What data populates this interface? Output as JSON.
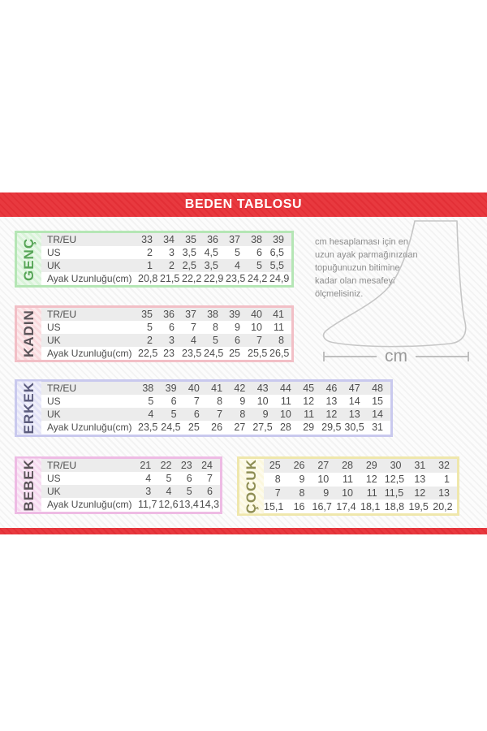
{
  "banner": {
    "title": "BEDEN TABLOSU",
    "accent_color": "#e8393f"
  },
  "note": {
    "lines": [
      "cm hesaplaması için en",
      "uzun ayak parmağınızdan",
      "topuğunuzun bitimine",
      "kadar olan mesafeyi",
      "ölçmelisiniz."
    ]
  },
  "foot_diagram": {
    "measure_label": "cm",
    "outline_color": "#c6c6c6"
  },
  "tables": [
    {
      "label": "GENÇ",
      "colors": {
        "border": "#b5e6b5",
        "label_bg": "#d8f3d8",
        "label_fg": "#57a557"
      },
      "has_row_labels": true,
      "rows": [
        {
          "label": "TR/EU",
          "values": [
            "33",
            "34",
            "35",
            "36",
            "37",
            "38",
            "39"
          ]
        },
        {
          "label": "US",
          "values": [
            "2",
            "3",
            "3,5",
            "4,5",
            "5",
            "6",
            "6,5"
          ]
        },
        {
          "label": "UK",
          "values": [
            "1",
            "2",
            "2,5",
            "3,5",
            "4",
            "5",
            "5,5"
          ]
        },
        {
          "label": "Ayak Uzunluğu(cm)",
          "values": [
            "20,8",
            "21,5",
            "22,2",
            "22,9",
            "23,5",
            "24,2",
            "24,9"
          ]
        }
      ]
    },
    {
      "label": "KADIN",
      "colors": {
        "border": "#f2bfc6",
        "label_bg": "#f9d9dd",
        "label_fg": "#5a5358"
      },
      "has_row_labels": true,
      "rows": [
        {
          "label": "TR/EU",
          "values": [
            "35",
            "36",
            "37",
            "38",
            "39",
            "40",
            "41"
          ]
        },
        {
          "label": "US",
          "values": [
            "5",
            "6",
            "7",
            "8",
            "9",
            "10",
            "11"
          ]
        },
        {
          "label": "UK",
          "values": [
            "2",
            "3",
            "4",
            "5",
            "6",
            "7",
            "8"
          ]
        },
        {
          "label": "Ayak Uzunluğu(cm)",
          "values": [
            "22,5",
            "23",
            "23,5",
            "24,5",
            "25",
            "25,5",
            "26,5"
          ]
        }
      ]
    },
    {
      "label": "ERKEK",
      "colors": {
        "border": "#c9c9ee",
        "label_bg": "#e3e3f7",
        "label_fg": "#5c5c7d"
      },
      "has_row_labels": true,
      "rows": [
        {
          "label": "TR/EU",
          "values": [
            "38",
            "39",
            "40",
            "41",
            "42",
            "43",
            "44",
            "45",
            "46",
            "47",
            "48"
          ]
        },
        {
          "label": "US",
          "values": [
            "5",
            "6",
            "7",
            "8",
            "9",
            "10",
            "11",
            "12",
            "13",
            "14",
            "15"
          ]
        },
        {
          "label": "UK",
          "values": [
            "4",
            "5",
            "6",
            "7",
            "8",
            "9",
            "10",
            "11",
            "12",
            "13",
            "14"
          ]
        },
        {
          "label": "Ayak Uzunluğu(cm)",
          "values": [
            "23,5",
            "24,5",
            "25",
            "26",
            "27",
            "27,5",
            "28",
            "29",
            "29,5",
            "30,5",
            "31"
          ]
        }
      ]
    },
    {
      "label": "BEBEK",
      "colors": {
        "border": "#eebbe4",
        "label_bg": "#f6d9f0",
        "label_fg": "#5a5358"
      },
      "has_row_labels": true,
      "rows": [
        {
          "label": "TR/EU",
          "values": [
            "21",
            "22",
            "23",
            "24"
          ]
        },
        {
          "label": "US",
          "values": [
            "4",
            "5",
            "6",
            "7"
          ]
        },
        {
          "label": "UK",
          "values": [
            "3",
            "4",
            "5",
            "6"
          ]
        },
        {
          "label": "Ayak Uzunluğu(cm)",
          "values": [
            "11,7",
            "12,6",
            "13,4",
            "14,3"
          ]
        }
      ]
    },
    {
      "label": "ÇOCUK",
      "colors": {
        "border": "#efe7ac",
        "label_bg": "#fbf7dd",
        "label_fg": "#8e8e55"
      },
      "has_row_labels": false,
      "rows": [
        {
          "values": [
            "25",
            "26",
            "27",
            "28",
            "29",
            "30",
            "31",
            "32"
          ]
        },
        {
          "values": [
            "8",
            "9",
            "10",
            "11",
            "12",
            "12,5",
            "13",
            "1"
          ]
        },
        {
          "values": [
            "7",
            "8",
            "9",
            "10",
            "11",
            "11,5",
            "12",
            "13"
          ]
        },
        {
          "values": [
            "15,1",
            "16",
            "16,7",
            "17,4",
            "18,1",
            "18,8",
            "19,5",
            "20,2"
          ]
        }
      ]
    }
  ]
}
